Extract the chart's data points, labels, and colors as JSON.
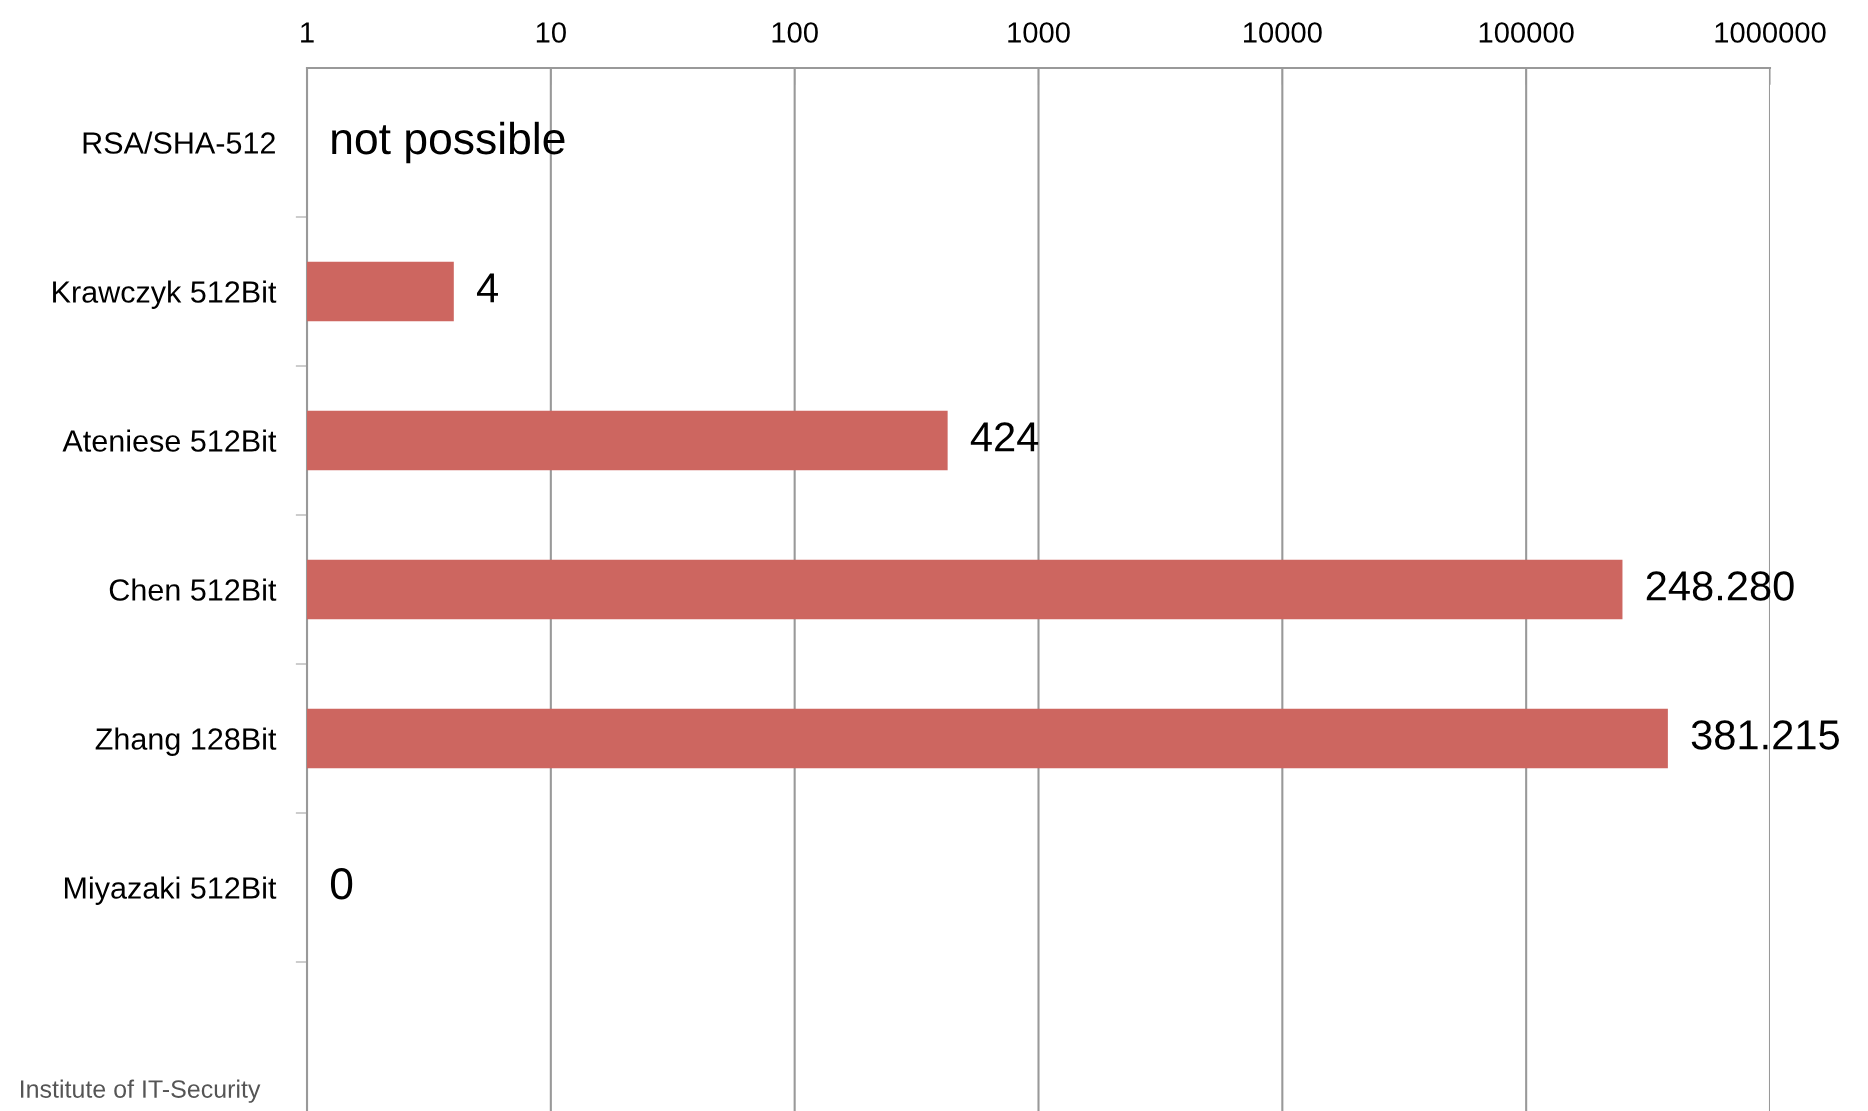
{
  "chart_data": {
    "type": "bar",
    "orientation": "horizontal",
    "log": "x",
    "categories": [
      "RSA/SHA-512",
      "Krawczyk 512Bit",
      "Ateniese 512Bit",
      "Chen 512Bit",
      "Zhang 128Bit",
      "Miyazaki 512Bit",
      null
    ],
    "values": [
      null,
      4,
      424,
      248280,
      381215,
      null,
      null
    ],
    "value_labels": [
      "not possible",
      "4",
      "424",
      "248.280",
      "381.215",
      "0",
      null
    ],
    "color": "#cd6660",
    "xlim": [
      1,
      1000000
    ],
    "xticks": [
      1,
      10,
      100,
      1000,
      10000,
      100000,
      1000000
    ],
    "grid": "x",
    "annotations": [
      "Institute of IT-Security"
    ]
  }
}
